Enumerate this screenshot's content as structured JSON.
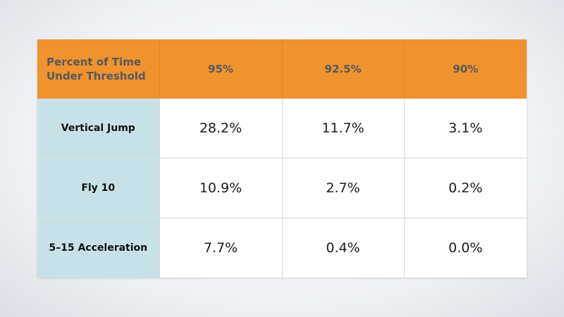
{
  "table": {
    "header": [
      "Percent of Time Under Threshold",
      "95%",
      "92.5%",
      "90%"
    ],
    "rows": [
      {
        "label": "Vertical Jump",
        "values": [
          "28.2%",
          "11.7%",
          "3.1%"
        ]
      },
      {
        "label": "Fly 10",
        "values": [
          "10.9%",
          "2.7%",
          "0.2%"
        ]
      },
      {
        "label": "5–15 Acceleration",
        "values": [
          "7.7%",
          "0.4%",
          "0.0%"
        ]
      }
    ]
  },
  "colors": {
    "header_background": "#f0922e",
    "header_text": "#55595e",
    "row_label_background": "#c8e1e7",
    "cell_background": "#ffffff"
  }
}
